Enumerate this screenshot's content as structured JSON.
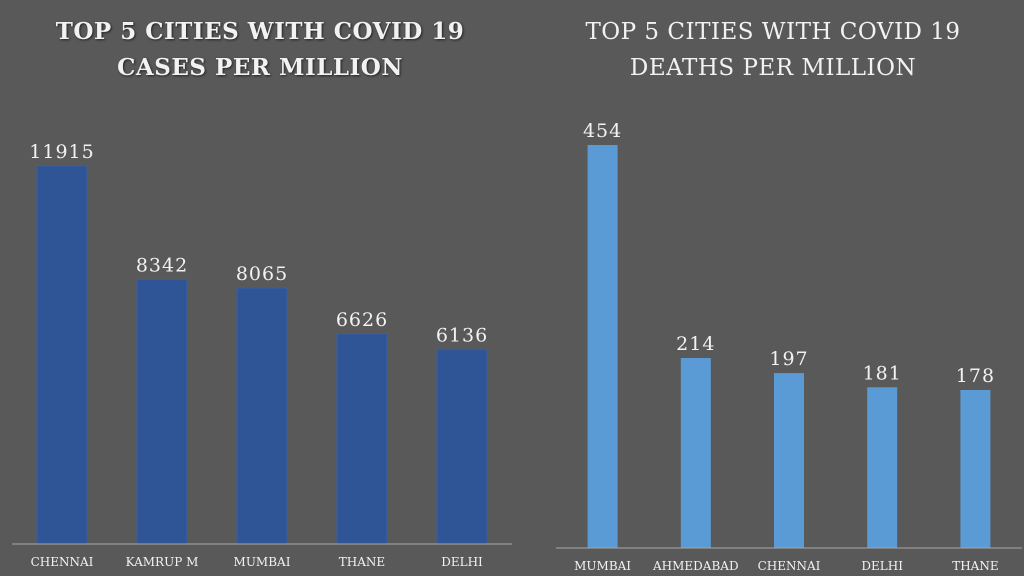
{
  "colors": {
    "background": "#595959",
    "cases_bar": "#2f5597",
    "deaths_bar": "#5b9bd5",
    "axis": "#a6a6a6",
    "text": "#f2f2f2"
  },
  "chart_data": [
    {
      "type": "bar",
      "title": [
        "Top 5 Cities with COVID 19",
        "Cases per million"
      ],
      "categories": [
        "CHENNAI",
        "KAMRUP M",
        "MUMBAI",
        "THANE",
        "DELHI"
      ],
      "values": [
        11915,
        8342,
        8065,
        6626,
        6136
      ],
      "ylim": [
        0,
        13000
      ],
      "grid": false,
      "legend": "none"
    },
    {
      "type": "bar",
      "title": [
        "Top 5 Cities with COVID 19",
        "Deaths per million"
      ],
      "categories": [
        "MUMBAI",
        "AHMEDABAD",
        "CHENNAI",
        "DELHI",
        "THANE"
      ],
      "values": [
        454,
        214,
        197,
        181,
        178
      ],
      "ylim": [
        0,
        500
      ],
      "grid": false,
      "legend": "none"
    }
  ]
}
